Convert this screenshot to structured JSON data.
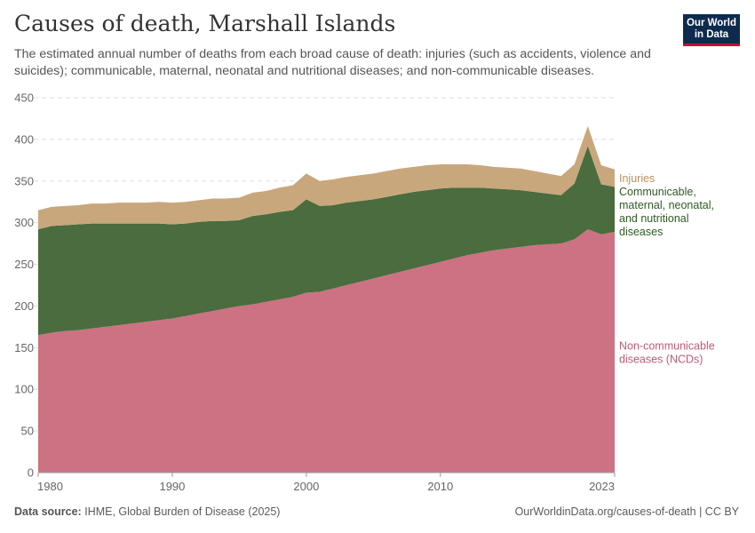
{
  "header": {
    "title": "Causes of death, Marshall Islands",
    "subtitle": "The estimated annual number of deaths from each broad cause of death: injuries (such as accidents, violence and suicides); communicable, maternal, neonatal and nutritional diseases; and non-communicable diseases."
  },
  "logo": {
    "line1": "Our World",
    "line2": "in Data"
  },
  "footer": {
    "source_label": "Data source:",
    "source_text": "IHME, Global Burden of Disease (2025)",
    "url": "OurWorldinData.org/causes-of-death | CC BY"
  },
  "colors": {
    "ncd": "#cc7283",
    "communicable": "#4a6c3e",
    "injuries": "#c9a77c",
    "ncd_label": "#c05a72",
    "communicable_label": "#2f5b24",
    "injuries_label": "#b9915f",
    "grid": "#dddddd",
    "tick": "#666666"
  },
  "chart_data": {
    "type": "area",
    "stacked": true,
    "title": "Causes of death, Marshall Islands",
    "xlabel": "",
    "ylabel": "",
    "xlim": [
      1980,
      2023
    ],
    "ylim": [
      0,
      450
    ],
    "y_ticks": [
      0,
      50,
      100,
      150,
      200,
      250,
      300,
      350,
      400,
      450
    ],
    "x_ticks": [
      1980,
      1990,
      2000,
      2010,
      2023
    ],
    "x_tick_labels": [
      "1980",
      "1990",
      "2000",
      "2010",
      "2023"
    ],
    "x": [
      1980,
      1981,
      1982,
      1983,
      1984,
      1985,
      1986,
      1987,
      1988,
      1989,
      1990,
      1991,
      1992,
      1993,
      1994,
      1995,
      1996,
      1997,
      1998,
      1999,
      2000,
      2001,
      2002,
      2003,
      2004,
      2005,
      2006,
      2007,
      2008,
      2009,
      2010,
      2011,
      2012,
      2013,
      2014,
      2015,
      2016,
      2017,
      2018,
      2019,
      2020,
      2021,
      2022,
      2023
    ],
    "series": [
      {
        "name": "Non-communicable diseases (NCDs)",
        "label_lines": [
          "Non-communicable",
          "diseases (NCDs)"
        ],
        "values": [
          165,
          168,
          170,
          171,
          173,
          175,
          177,
          179,
          181,
          183,
          185,
          188,
          191,
          194,
          197,
          200,
          202,
          205,
          208,
          211,
          216,
          217,
          221,
          225,
          229,
          233,
          237,
          241,
          245,
          249,
          253,
          257,
          261,
          264,
          267,
          269,
          271,
          273,
          274,
          275,
          280,
          292,
          286,
          289
        ]
      },
      {
        "name": "Communicable, maternal, neonatal and nutritional diseases",
        "label_lines": [
          "Communicable,",
          "maternal, neonatal,",
          "and nutritional",
          "diseases"
        ],
        "values": [
          127,
          128,
          127,
          127,
          126,
          124,
          122,
          120,
          118,
          116,
          113,
          111,
          110,
          108,
          105,
          103,
          106,
          105,
          105,
          104,
          112,
          103,
          100,
          99,
          97,
          95,
          94,
          93,
          92,
          90,
          88,
          85,
          81,
          78,
          74,
          71,
          68,
          64,
          61,
          58,
          67,
          100,
          60,
          54
        ]
      },
      {
        "name": "Injuries",
        "label_lines": [
          "Injuries"
        ],
        "values": [
          23,
          23,
          23,
          23,
          24,
          24,
          25,
          25,
          25,
          26,
          26,
          26,
          26,
          27,
          27,
          27,
          28,
          28,
          29,
          30,
          31,
          30,
          31,
          31,
          31,
          31,
          31,
          31,
          30,
          30,
          29,
          28,
          28,
          27,
          26,
          26,
          26,
          25,
          24,
          23,
          23,
          24,
          23,
          21
        ]
      }
    ]
  }
}
